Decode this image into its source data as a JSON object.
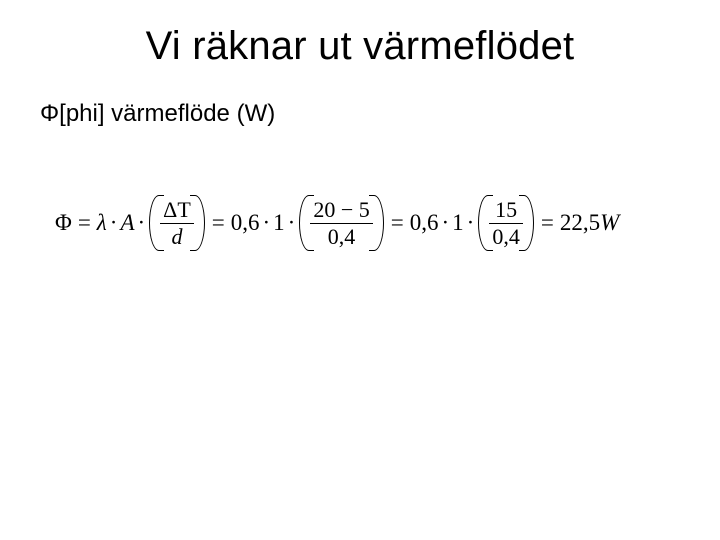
{
  "colors": {
    "background": "#ffffff",
    "text": "#000000"
  },
  "typography": {
    "title_family": "Arial",
    "title_size_pt": 30,
    "body_family": "Arial",
    "body_size_pt": 18,
    "equation_family": "Times New Roman",
    "equation_size_pt": 17
  },
  "title": "Vi räknar ut värmeflödet",
  "subtitle": "Φ[phi] värmeflöde (W)",
  "eqn": {
    "phi": "Φ",
    "lambda": "λ",
    "A": "A",
    "dT": "ΔT",
    "d": "d",
    "mult_dot": "·",
    "eq_sign": "=",
    "lambda_val": "0,6",
    "A_val": "1",
    "dT_num": "20",
    "dT_minus": "−",
    "dT_sub": "5",
    "d_val": "0,4",
    "frac2_num": "15",
    "frac2_den": "0,4",
    "result_val": "22,5",
    "result_unit": "W"
  }
}
